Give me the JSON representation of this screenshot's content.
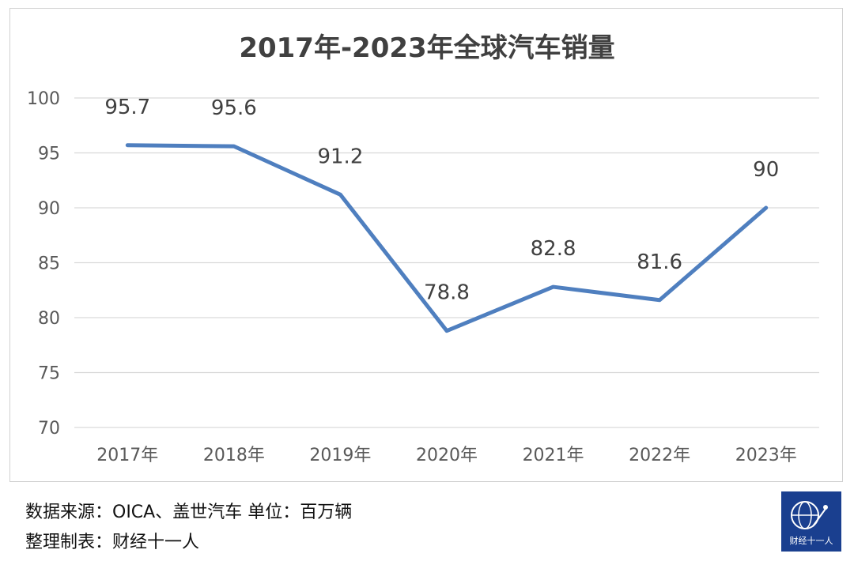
{
  "chart_data": {
    "type": "line",
    "title": "2017年-2023年全球汽车销量",
    "categories": [
      "2017年",
      "2018年",
      "2019年",
      "2020年",
      "2021年",
      "2022年",
      "2023年"
    ],
    "series": [
      {
        "name": "全球汽车销量",
        "values": [
          95.7,
          95.6,
          91.2,
          78.8,
          82.8,
          81.6,
          90
        ],
        "color": "#4f7fbf"
      }
    ],
    "data_labels": [
      "95.7",
      "95.6",
      "91.2",
      "78.8",
      "82.8",
      "81.6",
      "90"
    ],
    "ylim": [
      70,
      100
    ],
    "yticks": [
      70,
      75,
      80,
      85,
      90,
      95,
      100
    ],
    "grid": true,
    "xlabel": "",
    "ylabel": ""
  },
  "footer": {
    "source": "数据来源：OICA、盖世汽车 单位：百万辆",
    "compiled_by": "整理制表：财经十一人"
  },
  "logo": {
    "text": "财经十一人",
    "icon": "globe-icon"
  },
  "colors": {
    "gridline": "#d9d9d9",
    "axis_text": "#595959",
    "title": "#404040"
  }
}
